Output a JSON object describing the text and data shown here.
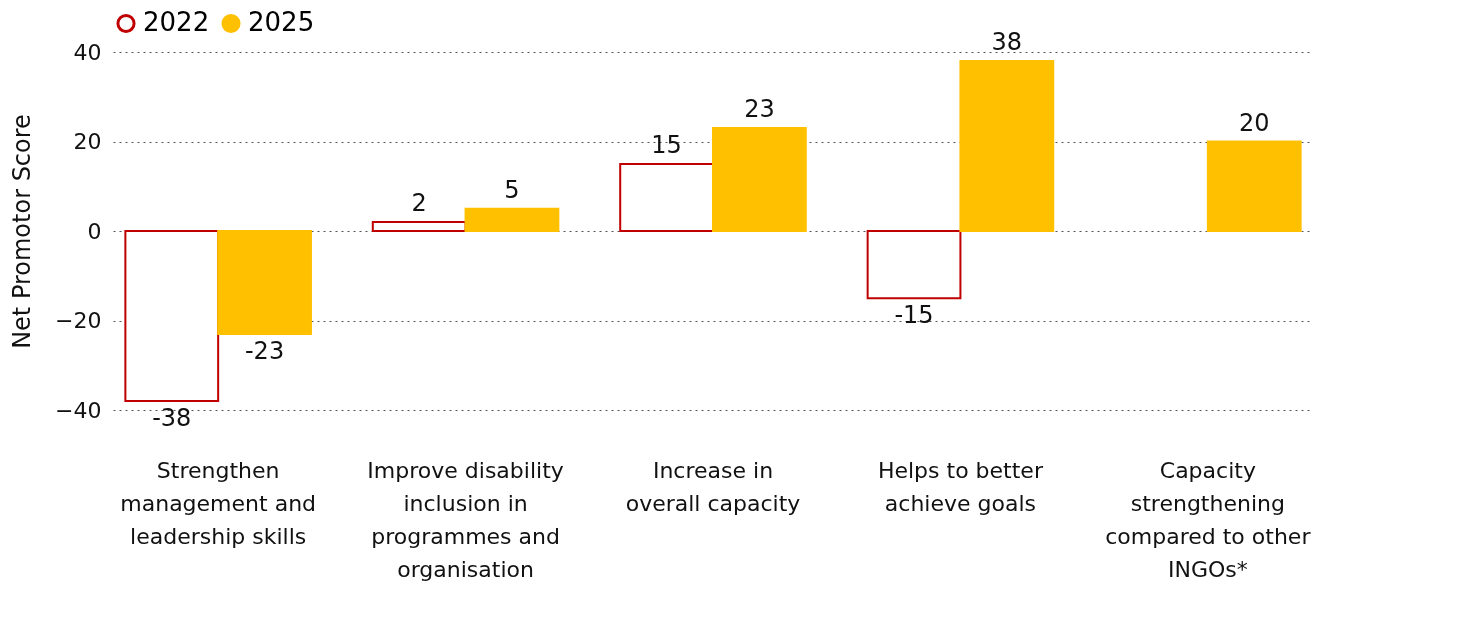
{
  "chart_data": {
    "type": "bar",
    "ylabel": "Net Promotor Score",
    "categories": [
      "Strengthen management and leadership skills",
      "Improve disability inclusion in programmes and organisation",
      "Increase in overall capacity",
      "Helps to better achieve goals",
      "Capacity strengthening compared to other INGOs*"
    ],
    "series": [
      {
        "name": "2022",
        "color": "#c00000",
        "values": [
          -38,
          2,
          15,
          -15,
          null
        ]
      },
      {
        "name": "2025",
        "color": "#ffc000",
        "values": [
          -23,
          5,
          23,
          38,
          20
        ]
      }
    ],
    "ylim": [
      -40,
      40
    ],
    "yticks": [
      -40,
      -20,
      0,
      20,
      40
    ],
    "grid": "y",
    "legend": "top left",
    "data_labels": true
  }
}
